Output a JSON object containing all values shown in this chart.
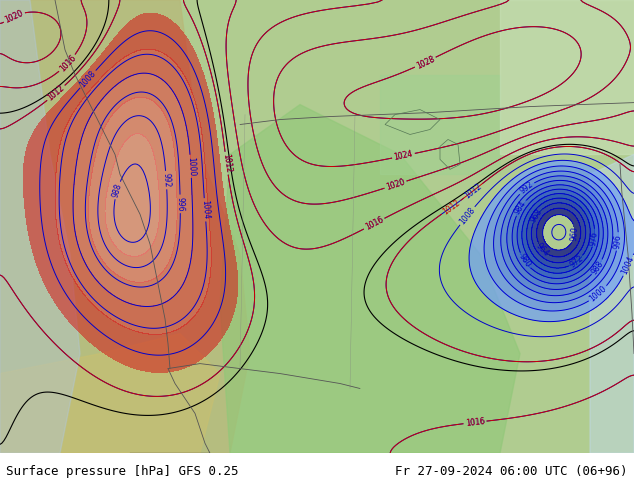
{
  "title_left": "Surface pressure [hPa] GFS 0.25",
  "title_right": "Fr 27-09-2024 06:00 UTC (06+96)",
  "fig_width": 6.34,
  "fig_height": 4.9,
  "dpi": 100,
  "footer_color": "#c8c8c8",
  "land_green": "#b8d4a0",
  "land_green2": "#98c878",
  "land_tan": "#c8c890",
  "red_low": "#e05858",
  "blue_cyclone": "#4060d8",
  "contour_blue": "#0000cc",
  "contour_red": "#cc0000",
  "contour_black": "#000000"
}
